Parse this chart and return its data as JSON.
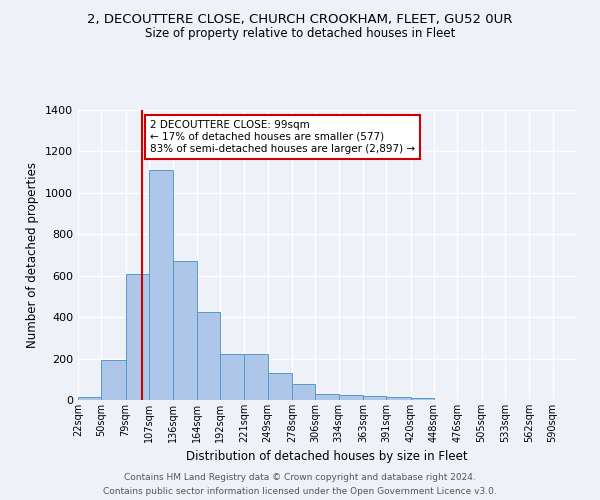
{
  "title_line1": "2, DECOUTTERE CLOSE, CHURCH CROOKHAM, FLEET, GU52 0UR",
  "title_line2": "Size of property relative to detached houses in Fleet",
  "xlabel": "Distribution of detached houses by size in Fleet",
  "ylabel": "Number of detached properties",
  "bar_color": "#aec6e8",
  "bar_edge_color": "#5599cc",
  "vline_color": "#cc0000",
  "vline_x": 99,
  "categories": [
    "22sqm",
    "50sqm",
    "79sqm",
    "107sqm",
    "136sqm",
    "164sqm",
    "192sqm",
    "221sqm",
    "249sqm",
    "278sqm",
    "306sqm",
    "334sqm",
    "363sqm",
    "391sqm",
    "420sqm",
    "448sqm",
    "476sqm",
    "505sqm",
    "533sqm",
    "562sqm",
    "590sqm"
  ],
  "bin_edges": [
    22,
    50,
    79,
    107,
    136,
    164,
    192,
    221,
    249,
    278,
    306,
    334,
    363,
    391,
    420,
    448,
    476,
    505,
    533,
    562,
    590
  ],
  "bar_heights": [
    15,
    195,
    610,
    1110,
    670,
    425,
    220,
    220,
    130,
    75,
    30,
    25,
    20,
    15,
    12,
    0,
    0,
    0,
    0,
    0
  ],
  "ylim": [
    0,
    1400
  ],
  "yticks": [
    0,
    200,
    400,
    600,
    800,
    1000,
    1200,
    1400
  ],
  "annotation_text": "2 DECOUTTERE CLOSE: 99sqm\n← 17% of detached houses are smaller (577)\n83% of semi-detached houses are larger (2,897) →",
  "annotation_box_color": "#ffffff",
  "annotation_box_edge": "#cc0000",
  "footer_line1": "Contains HM Land Registry data © Crown copyright and database right 2024.",
  "footer_line2": "Contains public sector information licensed under the Open Government Licence v3.0.",
  "background_color": "#eef2f8",
  "grid_color": "#ffffff"
}
